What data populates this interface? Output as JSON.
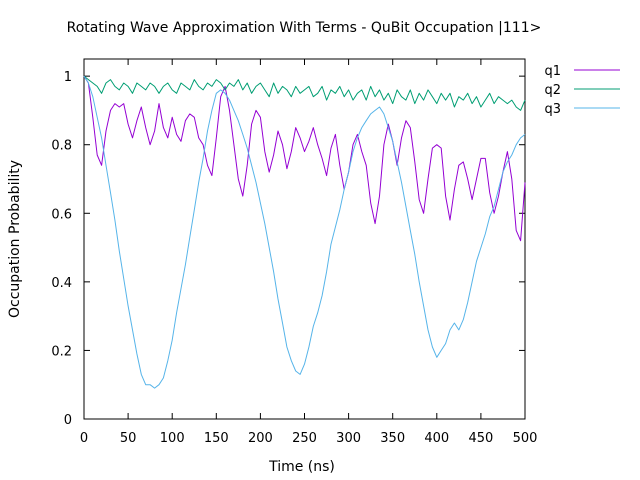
{
  "chart_data": {
    "type": "line",
    "title": "Rotating Wave Approximation With Terms - QuBit Occupation |111>",
    "xlabel": "Time (ns)",
    "ylabel": "Occupation Probability",
    "xlim": [
      0,
      500
    ],
    "ylim": [
      0,
      1.05
    ],
    "xticks": [
      "0",
      "50",
      "100",
      "150",
      "200",
      "250",
      "300",
      "350",
      "400",
      "450",
      "500"
    ],
    "yticks": [
      "0",
      "0.2",
      "0.4",
      "0.6",
      "0.8",
      "1"
    ],
    "grid": false,
    "legend_position": "outside-right",
    "series": [
      {
        "name": "q1",
        "color": "#9400d3",
        "x": [
          0,
          5,
          10,
          15,
          20,
          25,
          30,
          35,
          40,
          45,
          50,
          55,
          60,
          65,
          70,
          75,
          80,
          85,
          90,
          95,
          100,
          105,
          110,
          115,
          120,
          125,
          130,
          135,
          140,
          145,
          150,
          155,
          160,
          165,
          170,
          175,
          180,
          185,
          190,
          195,
          200,
          205,
          210,
          215,
          220,
          225,
          230,
          235,
          240,
          245,
          250,
          255,
          260,
          265,
          270,
          275,
          280,
          285,
          290,
          295,
          300,
          305,
          310,
          315,
          320,
          325,
          330,
          335,
          340,
          345,
          350,
          355,
          360,
          365,
          370,
          375,
          380,
          385,
          390,
          395,
          400,
          405,
          410,
          415,
          420,
          425,
          430,
          435,
          440,
          445,
          450,
          455,
          460,
          465,
          470,
          475,
          480,
          485,
          490,
          495,
          500
        ],
        "values": [
          1.0,
          0.98,
          0.88,
          0.77,
          0.74,
          0.84,
          0.9,
          0.92,
          0.91,
          0.92,
          0.86,
          0.82,
          0.87,
          0.91,
          0.85,
          0.8,
          0.84,
          0.92,
          0.85,
          0.82,
          0.88,
          0.83,
          0.81,
          0.87,
          0.89,
          0.88,
          0.82,
          0.8,
          0.74,
          0.71,
          0.82,
          0.94,
          0.97,
          0.9,
          0.8,
          0.7,
          0.65,
          0.74,
          0.86,
          0.9,
          0.88,
          0.78,
          0.72,
          0.77,
          0.84,
          0.8,
          0.73,
          0.78,
          0.85,
          0.82,
          0.78,
          0.81,
          0.85,
          0.8,
          0.76,
          0.71,
          0.79,
          0.83,
          0.74,
          0.67,
          0.72,
          0.8,
          0.83,
          0.78,
          0.74,
          0.63,
          0.57,
          0.65,
          0.8,
          0.86,
          0.81,
          0.74,
          0.82,
          0.87,
          0.85,
          0.75,
          0.64,
          0.6,
          0.7,
          0.79,
          0.8,
          0.79,
          0.65,
          0.58,
          0.67,
          0.74,
          0.75,
          0.7,
          0.64,
          0.7,
          0.76,
          0.76,
          0.66,
          0.6,
          0.65,
          0.72,
          0.78,
          0.7,
          0.55,
          0.52,
          0.69
        ]
      },
      {
        "name": "q2",
        "color": "#009e73",
        "x": [
          0,
          5,
          10,
          15,
          20,
          25,
          30,
          35,
          40,
          45,
          50,
          55,
          60,
          65,
          70,
          75,
          80,
          85,
          90,
          95,
          100,
          105,
          110,
          115,
          120,
          125,
          130,
          135,
          140,
          145,
          150,
          155,
          160,
          165,
          170,
          175,
          180,
          185,
          190,
          195,
          200,
          205,
          210,
          215,
          220,
          225,
          230,
          235,
          240,
          245,
          250,
          255,
          260,
          265,
          270,
          275,
          280,
          285,
          290,
          295,
          300,
          305,
          310,
          315,
          320,
          325,
          330,
          335,
          340,
          345,
          350,
          355,
          360,
          365,
          370,
          375,
          380,
          385,
          390,
          395,
          400,
          405,
          410,
          415,
          420,
          425,
          430,
          435,
          440,
          445,
          450,
          455,
          460,
          465,
          470,
          475,
          480,
          485,
          490,
          495,
          500
        ],
        "values": [
          1.0,
          0.99,
          0.98,
          0.97,
          0.95,
          0.98,
          0.99,
          0.97,
          0.96,
          0.98,
          0.97,
          0.95,
          0.98,
          0.97,
          0.96,
          0.98,
          0.97,
          0.95,
          0.97,
          0.98,
          0.96,
          0.95,
          0.98,
          0.97,
          0.96,
          0.99,
          0.97,
          0.96,
          0.98,
          0.97,
          0.99,
          0.98,
          0.96,
          0.98,
          0.97,
          0.99,
          0.96,
          0.98,
          0.95,
          0.97,
          0.98,
          0.96,
          0.94,
          0.98,
          0.95,
          0.97,
          0.96,
          0.94,
          0.97,
          0.95,
          0.96,
          0.97,
          0.94,
          0.95,
          0.97,
          0.93,
          0.96,
          0.95,
          0.97,
          0.94,
          0.96,
          0.93,
          0.95,
          0.96,
          0.93,
          0.97,
          0.94,
          0.96,
          0.93,
          0.95,
          0.92,
          0.96,
          0.94,
          0.93,
          0.96,
          0.92,
          0.95,
          0.93,
          0.96,
          0.94,
          0.92,
          0.95,
          0.93,
          0.95,
          0.91,
          0.94,
          0.93,
          0.95,
          0.92,
          0.94,
          0.91,
          0.93,
          0.95,
          0.92,
          0.94,
          0.93,
          0.92,
          0.93,
          0.91,
          0.9,
          0.93
        ]
      },
      {
        "name": "q3",
        "color": "#56b4e9",
        "x": [
          0,
          5,
          10,
          15,
          20,
          25,
          30,
          35,
          40,
          45,
          50,
          55,
          60,
          65,
          70,
          75,
          80,
          85,
          90,
          95,
          100,
          105,
          110,
          115,
          120,
          125,
          130,
          135,
          140,
          145,
          150,
          155,
          160,
          165,
          170,
          175,
          180,
          185,
          190,
          195,
          200,
          205,
          210,
          215,
          220,
          225,
          230,
          235,
          240,
          245,
          250,
          255,
          260,
          265,
          270,
          275,
          280,
          285,
          290,
          295,
          300,
          305,
          310,
          315,
          320,
          325,
          330,
          335,
          340,
          345,
          350,
          355,
          360,
          365,
          370,
          375,
          380,
          385,
          390,
          395,
          400,
          405,
          410,
          415,
          420,
          425,
          430,
          435,
          440,
          445,
          450,
          455,
          460,
          465,
          470,
          475,
          480,
          485,
          490,
          495,
          500
        ],
        "values": [
          1.0,
          0.98,
          0.94,
          0.88,
          0.82,
          0.74,
          0.66,
          0.58,
          0.49,
          0.41,
          0.33,
          0.26,
          0.19,
          0.13,
          0.1,
          0.1,
          0.09,
          0.1,
          0.12,
          0.17,
          0.23,
          0.31,
          0.38,
          0.45,
          0.53,
          0.61,
          0.69,
          0.76,
          0.84,
          0.9,
          0.95,
          0.96,
          0.95,
          0.93,
          0.9,
          0.87,
          0.83,
          0.79,
          0.74,
          0.69,
          0.63,
          0.57,
          0.5,
          0.43,
          0.35,
          0.28,
          0.21,
          0.17,
          0.14,
          0.13,
          0.16,
          0.21,
          0.27,
          0.31,
          0.36,
          0.43,
          0.51,
          0.56,
          0.61,
          0.67,
          0.72,
          0.78,
          0.82,
          0.85,
          0.87,
          0.89,
          0.9,
          0.91,
          0.89,
          0.85,
          0.81,
          0.75,
          0.69,
          0.62,
          0.55,
          0.48,
          0.4,
          0.33,
          0.26,
          0.21,
          0.18,
          0.2,
          0.22,
          0.26,
          0.28,
          0.26,
          0.29,
          0.34,
          0.4,
          0.46,
          0.5,
          0.54,
          0.59,
          0.62,
          0.67,
          0.72,
          0.75,
          0.77,
          0.8,
          0.82,
          0.83
        ]
      }
    ]
  }
}
